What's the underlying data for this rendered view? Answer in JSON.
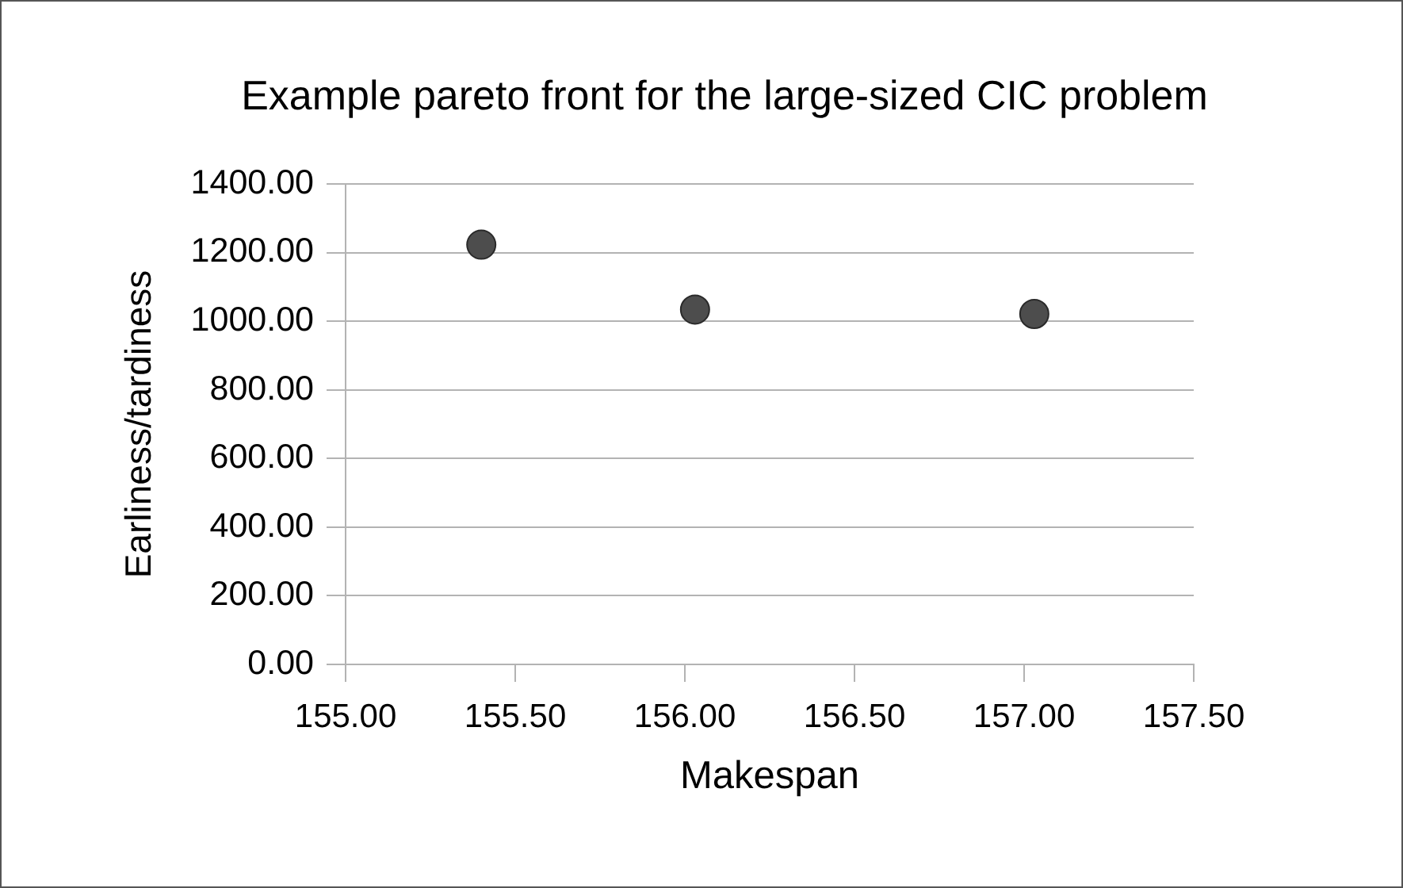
{
  "chart_data": {
    "type": "scatter",
    "title": "Example pareto front for the large-sized CIC problem",
    "xlabel": "Makespan",
    "ylabel": "Earliness/tardiness",
    "x": [
      155.4,
      156.03,
      157.03
    ],
    "values": [
      1223,
      1034,
      1021
    ],
    "color": "#4d4d4d",
    "marker": "circle",
    "grid": "y",
    "xlim": [
      155,
      157.5
    ],
    "xticks": [
      {
        "value": 155,
        "label": "155.00"
      },
      {
        "value": 155.5,
        "label": "155.50"
      },
      {
        "value": 156,
        "label": "156.00"
      },
      {
        "value": 156.5,
        "label": "156.50"
      },
      {
        "value": 157,
        "label": "157.00"
      },
      {
        "value": 157.5,
        "label": "157.50"
      }
    ],
    "ylim": [
      0,
      1400
    ],
    "yticks": [
      {
        "value": 0,
        "label": "0.00"
      },
      {
        "value": 200,
        "label": "200.00"
      },
      {
        "value": 400,
        "label": "400.00"
      },
      {
        "value": 600,
        "label": "600.00"
      },
      {
        "value": 800,
        "label": "800.00"
      },
      {
        "value": 1000,
        "label": "1000.00"
      },
      {
        "value": 1200,
        "label": "1200.00"
      },
      {
        "value": 1400,
        "label": "1400.00"
      }
    ]
  }
}
